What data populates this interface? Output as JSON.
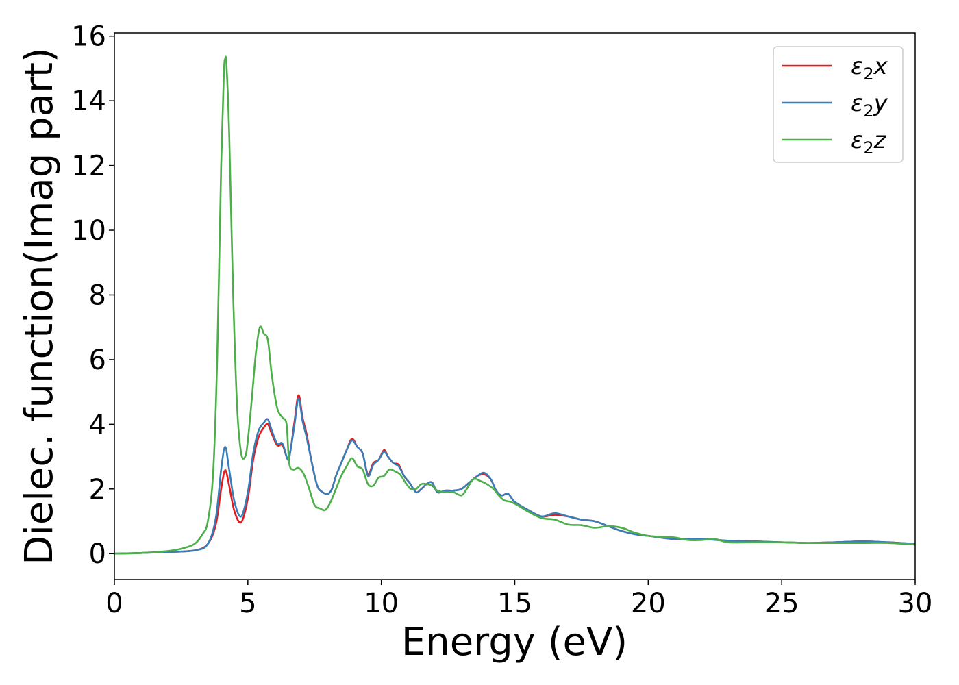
{
  "chart_data": {
    "type": "line",
    "title": "",
    "xlabel": "Energy (eV)",
    "ylabel": "Dielec. function(Imag part)",
    "xlim": [
      0,
      30
    ],
    "ylim": [
      -0.8,
      16.1
    ],
    "xticks": [
      0,
      5,
      10,
      15,
      20,
      25,
      30
    ],
    "yticks": [
      0,
      2,
      4,
      6,
      8,
      10,
      12,
      14,
      16
    ],
    "grid": false,
    "legend_position": "top-right",
    "series": [
      {
        "name": "ε2x",
        "legend_base": "ε",
        "legend_sub": "2",
        "legend_tail": "x",
        "color": "#e41a1c",
        "x": [
          0,
          1,
          2,
          3,
          3.5,
          3.8,
          4.0,
          4.15,
          4.3,
          4.5,
          4.75,
          5.0,
          5.2,
          5.4,
          5.6,
          5.75,
          5.9,
          6.1,
          6.3,
          6.5,
          6.6,
          6.75,
          6.9,
          7.05,
          7.2,
          7.4,
          7.6,
          7.8,
          8.0,
          8.15,
          8.3,
          8.5,
          8.7,
          8.9,
          9.1,
          9.3,
          9.5,
          9.7,
          9.9,
          10.1,
          10.25,
          10.45,
          10.65,
          10.85,
          11.05,
          11.3,
          11.5,
          11.7,
          11.9,
          12.1,
          12.4,
          12.7,
          13.0,
          13.3,
          13.6,
          13.85,
          14.1,
          14.3,
          14.5,
          14.75,
          15.0,
          15.5,
          16.0,
          16.5,
          17.0,
          17.5,
          18.0,
          18.5,
          19.0,
          19.5,
          20.0,
          21.0,
          22.0,
          23.0,
          24.0,
          25.0,
          26.0,
          27.0,
          28.0,
          29.0,
          30.0
        ],
        "values": [
          0,
          0.02,
          0.05,
          0.1,
          0.3,
          0.9,
          2.0,
          2.58,
          2.1,
          1.3,
          0.97,
          1.7,
          2.9,
          3.6,
          3.9,
          4.0,
          3.7,
          3.35,
          3.35,
          2.9,
          3.2,
          4.1,
          4.9,
          4.2,
          3.7,
          2.8,
          2.1,
          1.9,
          1.85,
          2.0,
          2.4,
          2.8,
          3.2,
          3.55,
          3.3,
          3.1,
          2.45,
          2.8,
          2.9,
          3.2,
          3.0,
          2.8,
          2.75,
          2.4,
          2.2,
          1.9,
          2.0,
          2.15,
          2.2,
          1.9,
          1.95,
          1.95,
          2.0,
          2.2,
          2.4,
          2.45,
          2.3,
          1.95,
          1.8,
          1.85,
          1.6,
          1.35,
          1.15,
          1.2,
          1.15,
          1.05,
          1.0,
          0.85,
          0.7,
          0.6,
          0.55,
          0.45,
          0.45,
          0.4,
          0.38,
          0.35,
          0.33,
          0.35,
          0.38,
          0.35,
          0.3
        ]
      },
      {
        "name": "ε2y",
        "legend_base": "ε",
        "legend_sub": "2",
        "legend_tail": "y",
        "color": "#377eb8",
        "x": [
          0,
          1,
          2,
          3,
          3.5,
          3.8,
          4.0,
          4.15,
          4.3,
          4.5,
          4.75,
          5.0,
          5.2,
          5.4,
          5.6,
          5.75,
          5.9,
          6.1,
          6.3,
          6.5,
          6.6,
          6.75,
          6.9,
          7.05,
          7.2,
          7.4,
          7.6,
          7.8,
          8.0,
          8.15,
          8.3,
          8.5,
          8.7,
          8.9,
          9.1,
          9.3,
          9.5,
          9.7,
          9.9,
          10.1,
          10.25,
          10.45,
          10.65,
          10.85,
          11.05,
          11.3,
          11.5,
          11.7,
          11.9,
          12.1,
          12.4,
          12.7,
          13.0,
          13.3,
          13.6,
          13.85,
          14.1,
          14.3,
          14.5,
          14.75,
          15.0,
          15.5,
          16.0,
          16.5,
          17.0,
          17.5,
          18.0,
          18.5,
          19.0,
          19.5,
          20.0,
          21.0,
          22.0,
          23.0,
          24.0,
          25.0,
          26.0,
          27.0,
          28.0,
          29.0,
          30.0
        ],
        "values": [
          0,
          0.02,
          0.05,
          0.1,
          0.3,
          1.1,
          2.6,
          3.3,
          2.6,
          1.6,
          1.15,
          1.9,
          3.1,
          3.8,
          4.05,
          4.15,
          3.8,
          3.4,
          3.4,
          2.9,
          3.2,
          4.0,
          4.8,
          4.1,
          3.6,
          2.8,
          2.1,
          1.9,
          1.85,
          2.0,
          2.4,
          2.8,
          3.2,
          3.5,
          3.3,
          3.1,
          2.4,
          2.75,
          2.9,
          3.15,
          3.0,
          2.8,
          2.7,
          2.4,
          2.2,
          1.9,
          2.0,
          2.15,
          2.2,
          1.9,
          1.95,
          1.95,
          2.0,
          2.2,
          2.4,
          2.5,
          2.3,
          1.95,
          1.8,
          1.85,
          1.6,
          1.35,
          1.15,
          1.25,
          1.15,
          1.05,
          1.0,
          0.85,
          0.7,
          0.6,
          0.55,
          0.45,
          0.45,
          0.4,
          0.38,
          0.35,
          0.33,
          0.35,
          0.38,
          0.35,
          0.3
        ]
      },
      {
        "name": "ε2z",
        "legend_base": "ε",
        "legend_sub": "2",
        "legend_tail": "z",
        "color": "#4daf4a",
        "x": [
          0,
          1,
          2,
          2.5,
          3.0,
          3.3,
          3.5,
          3.7,
          3.85,
          4.0,
          4.1,
          4.15,
          4.2,
          4.3,
          4.45,
          4.6,
          4.75,
          4.9,
          5.0,
          5.15,
          5.3,
          5.45,
          5.6,
          5.75,
          5.9,
          6.1,
          6.3,
          6.45,
          6.55,
          6.7,
          6.9,
          7.1,
          7.3,
          7.5,
          7.7,
          7.9,
          8.1,
          8.3,
          8.5,
          8.7,
          8.9,
          9.1,
          9.3,
          9.5,
          9.7,
          9.9,
          10.1,
          10.3,
          10.5,
          10.7,
          10.9,
          11.1,
          11.3,
          11.5,
          11.7,
          11.9,
          12.1,
          12.4,
          12.7,
          13.0,
          13.2,
          13.45,
          13.7,
          13.95,
          14.2,
          14.4,
          14.6,
          14.85,
          15.1,
          15.5,
          16.0,
          16.5,
          17.0,
          17.5,
          18.0,
          18.5,
          19.0,
          19.5,
          20.0,
          20.5,
          21.0,
          21.5,
          22.0,
          22.5,
          23.0,
          24.0,
          25.0,
          26.0,
          27.0,
          28.0,
          29.0,
          30.0
        ],
        "values": [
          0,
          0.02,
          0.08,
          0.15,
          0.3,
          0.6,
          1.0,
          2.5,
          6.0,
          12.0,
          14.8,
          15.3,
          15.1,
          13.0,
          8.0,
          4.5,
          3.1,
          3.0,
          3.5,
          4.8,
          6.2,
          7.0,
          6.8,
          6.6,
          5.5,
          4.5,
          4.2,
          4.0,
          2.8,
          2.6,
          2.65,
          2.45,
          2.0,
          1.5,
          1.4,
          1.35,
          1.6,
          2.0,
          2.4,
          2.7,
          2.95,
          2.7,
          2.6,
          2.15,
          2.1,
          2.35,
          2.4,
          2.6,
          2.55,
          2.45,
          2.2,
          2.0,
          2.0,
          2.15,
          2.15,
          2.1,
          1.95,
          1.9,
          1.9,
          1.8,
          2.0,
          2.3,
          2.25,
          2.15,
          2.0,
          1.8,
          1.65,
          1.6,
          1.5,
          1.3,
          1.1,
          1.05,
          0.9,
          0.88,
          0.8,
          0.85,
          0.8,
          0.65,
          0.55,
          0.52,
          0.5,
          0.42,
          0.42,
          0.45,
          0.35,
          0.35,
          0.35,
          0.33,
          0.33,
          0.33,
          0.33,
          0.28
        ]
      }
    ]
  }
}
